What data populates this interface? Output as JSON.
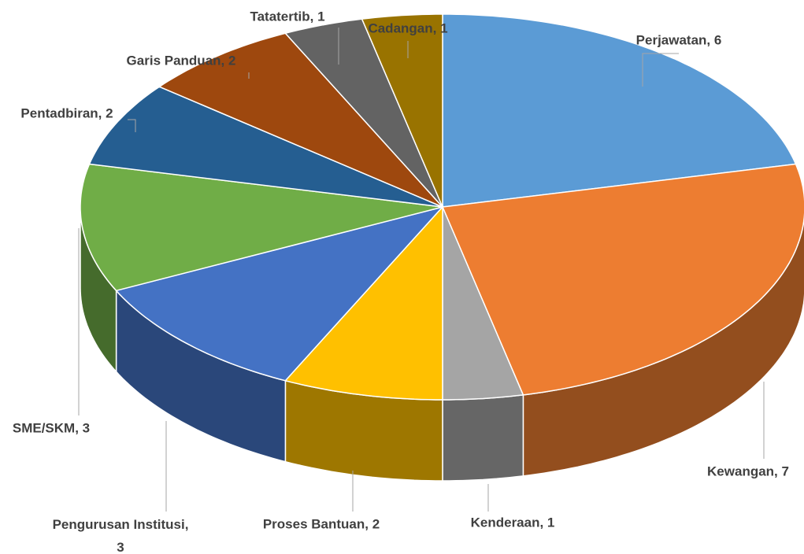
{
  "chart_data": {
    "type": "pie3d",
    "categories": [
      "Perjawatan",
      "Kewangan",
      "Kenderaan",
      "Proses Bantuan",
      "Pengurusan Institusi",
      "SME/SKM",
      "Pentadbiran",
      "Garis Panduan",
      "Tatatertib",
      "Cadangan"
    ],
    "values": [
      6,
      7,
      1,
      2,
      3,
      3,
      2,
      2,
      1,
      1
    ],
    "value_labels": [
      "Perjawatan, 6",
      "Kewangan, 7",
      "Kenderaan, 1",
      "Proses Bantuan, 2",
      "Pengurusan Institusi, 3",
      "SME/SKM, 3",
      "Pentadbiran, 2",
      "Garis Panduan, 2",
      "Tatatertib, 1",
      "Cadangan, 1"
    ],
    "colors": [
      "#5b9bd5",
      "#ed7d31",
      "#a5a5a5",
      "#ffc000",
      "#4472c4",
      "#70ad47",
      "#255e91",
      "#9e480e",
      "#636363",
      "#997300"
    ]
  }
}
